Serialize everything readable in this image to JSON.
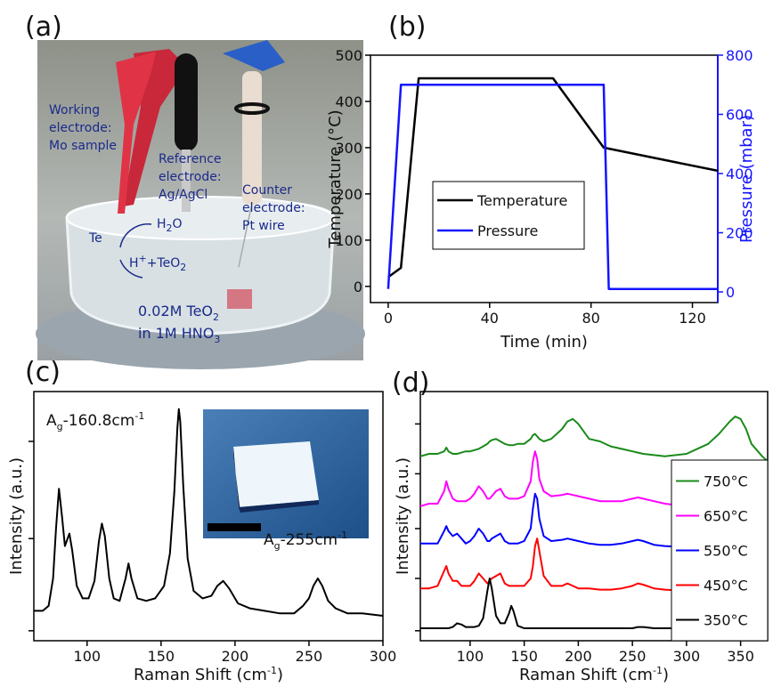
{
  "panel_labels": [
    "(a)",
    "(b)",
    "(c)",
    "(d)"
  ],
  "photo": {
    "working": [
      "Working",
      "electrode:",
      "Mo sample"
    ],
    "reference": [
      "Reference",
      "electrode:",
      "Ag/AgCl"
    ],
    "counter": [
      "Counter",
      "electrode:",
      "Pt wire"
    ],
    "te": "Te",
    "water": {
      "a": "H",
      "sub": "2",
      "b": "O"
    },
    "products": {
      "a": "H",
      "sup": "+",
      "b": "+TeO",
      "sub": "2"
    },
    "solution": [
      {
        "text": "0.02M TeO",
        "sub": "2"
      },
      {
        "text": "in 1M HNO",
        "sub": "3"
      }
    ]
  },
  "chart_data": [
    {
      "type": "line",
      "xlabel": "Time (min)",
      "ylabel": "Temperature (°C)",
      "y2label": "Pressure (mbar)",
      "xlim": [
        -7,
        130
      ],
      "xticks": [
        0,
        40,
        80,
        120
      ],
      "ylim": [
        -35,
        500
      ],
      "yticks": [
        0,
        100,
        200,
        300,
        400,
        500
      ],
      "y2lim": [
        -36,
        800
      ],
      "y2ticks": [
        0,
        200,
        400,
        600,
        800
      ],
      "legend": "center-left",
      "series": [
        {
          "name": "Temperature",
          "color": "#000000",
          "x": [
            0,
            5,
            12,
            65,
            85,
            130
          ],
          "values": [
            20,
            40,
            450,
            450,
            300,
            250
          ]
        },
        {
          "name": "Pressure",
          "color": "#1414ff",
          "axis": "y2",
          "x": [
            0,
            5,
            85,
            87,
            130
          ],
          "values": [
            10,
            700,
            700,
            10,
            10
          ]
        }
      ]
    },
    {
      "type": "line",
      "xlabel": {
        "text": "Raman Shift (cm",
        "sup": "-1",
        "end": ")"
      },
      "ylabel": "Intensity (a.u.)",
      "annotations": [
        {
          "base": "A",
          "sub": "g",
          "text": "-160.8cm",
          "sup": "-1"
        },
        {
          "base": "A",
          "sub": "g",
          "text": "-255cm",
          "sup": "-1"
        }
      ],
      "xlim": [
        64,
        300
      ],
      "xticks": [
        100,
        150,
        200,
        250,
        300
      ],
      "ylim": [
        0,
        100
      ],
      "yticks": [
        4,
        41,
        80
      ],
      "ytick_labels": false,
      "x": [
        64,
        70,
        74,
        77,
        79,
        81,
        83,
        85,
        88,
        90,
        93,
        97,
        101,
        105,
        108,
        110,
        112,
        115,
        118,
        122,
        126,
        128,
        130,
        134,
        140,
        146,
        152,
        156,
        159,
        161,
        162,
        163,
        165,
        168,
        172,
        178,
        184,
        188,
        192,
        196,
        202,
        210,
        220,
        230,
        240,
        246,
        250,
        253,
        256,
        259,
        263,
        268,
        276,
        286,
        300
      ],
      "series": [
        {
          "color": "#000000",
          "values": [
            12,
            12,
            14,
            25,
            45,
            61,
            50,
            38,
            43,
            36,
            22,
            17,
            17,
            24,
            40,
            47,
            42,
            25,
            17,
            16,
            25,
            31,
            25,
            17,
            16,
            17,
            22,
            35,
            60,
            85,
            93,
            88,
            62,
            33,
            20,
            17,
            18,
            22,
            24,
            21,
            15,
            13,
            12,
            11,
            11,
            14,
            17,
            22,
            25,
            22,
            16,
            13,
            11,
            11,
            10
          ]
        }
      ]
    },
    {
      "type": "line",
      "xlabel": {
        "text": "Raman Shift (cm",
        "sup": "-1",
        "end": ")"
      },
      "ylabel": "Intensity (a.u.)",
      "xlim": [
        54,
        375
      ],
      "xticks": [
        100,
        150,
        200,
        250,
        300,
        350
      ],
      "ylim": [
        0,
        100
      ],
      "yticks": [
        4,
        25,
        45,
        67,
        87
      ],
      "ytick_labels": false,
      "legend": "lower right",
      "x": [
        54,
        62,
        70,
        76,
        78,
        80,
        84,
        88,
        92,
        96,
        100,
        104,
        108,
        112,
        116,
        118,
        120,
        124,
        128,
        132,
        136,
        138,
        140,
        144,
        150,
        156,
        158,
        160,
        162,
        164,
        168,
        175,
        185,
        190,
        195,
        200,
        210,
        220,
        230,
        240,
        250,
        255,
        260,
        270,
        280,
        300,
        320,
        330,
        340,
        345,
        350,
        355,
        360,
        370,
        375
      ],
      "series": [
        {
          "name": "750°C",
          "color": "#1a8a1a",
          "values": [
            74,
            75,
            75,
            76,
            77.5,
            76,
            75,
            75,
            75.5,
            76,
            76,
            76.5,
            77,
            78,
            79,
            80,
            80.5,
            81,
            80,
            79,
            78.5,
            78.5,
            78.5,
            79,
            79,
            81,
            82.5,
            83,
            82,
            81,
            80,
            81,
            85,
            88,
            89,
            87,
            81,
            80,
            78,
            77,
            76,
            75.5,
            75,
            74.5,
            74,
            75,
            79,
            83,
            88,
            90,
            89,
            85,
            79,
            74,
            72
          ]
        },
        {
          "name": "650°C",
          "color": "#ff00ff",
          "values": [
            54,
            55,
            55,
            60,
            64,
            61,
            57,
            56,
            56,
            56,
            57,
            59,
            62,
            60,
            57,
            57,
            58,
            60,
            61,
            58,
            57,
            57,
            57,
            57,
            58,
            64,
            72,
            76,
            73,
            65,
            60,
            58,
            58.5,
            59,
            58.5,
            58,
            57,
            56,
            56,
            56,
            57,
            57.5,
            57,
            56,
            55,
            54,
            54,
            54,
            53.5,
            53.5,
            53.5,
            53.5,
            53,
            53,
            53
          ]
        },
        {
          "name": "550°C",
          "color": "#0000ff",
          "values": [
            39,
            39,
            39,
            44,
            46,
            44,
            42,
            43,
            41,
            39,
            40,
            42,
            45,
            43,
            40,
            40,
            41,
            42,
            43,
            40,
            39,
            39,
            39,
            39,
            40,
            45,
            53,
            59,
            57,
            49,
            42,
            40,
            40.5,
            41,
            40.5,
            40,
            39,
            38.5,
            38.5,
            39,
            40,
            40.5,
            40,
            38.5,
            38,
            37.5,
            37.5,
            37.5,
            37.5,
            37.5,
            37.5,
            37.5,
            37,
            37,
            37
          ]
        },
        {
          "name": "450°C",
          "color": "#ff0000",
          "values": [
            21,
            21,
            22,
            28,
            30,
            27,
            24,
            24,
            22,
            22,
            22,
            24,
            27,
            25,
            23,
            24,
            25,
            26,
            27,
            23,
            22,
            22,
            22,
            22,
            22,
            25,
            30,
            38,
            41,
            36,
            26,
            22,
            22,
            23,
            22,
            21,
            21,
            20.5,
            20.5,
            21,
            22,
            23,
            22.5,
            21,
            20.5,
            20,
            20,
            20,
            20,
            20,
            20,
            20,
            20,
            20,
            20
          ]
        },
        {
          "name": "350°C",
          "color": "#000000",
          "values": [
            5,
            5,
            5,
            5,
            5,
            5,
            5.5,
            7,
            6.5,
            5.5,
            5.5,
            5.5,
            6,
            9,
            20,
            25,
            21,
            10,
            7,
            7,
            11,
            14,
            12,
            6,
            5,
            5,
            5,
            5,
            5,
            5,
            5,
            5,
            5,
            5,
            5,
            5,
            5,
            5,
            5,
            5,
            5,
            5.5,
            5.5,
            5,
            5,
            5,
            5,
            5,
            5,
            5,
            5,
            5,
            5,
            5,
            5
          ]
        }
      ]
    }
  ]
}
